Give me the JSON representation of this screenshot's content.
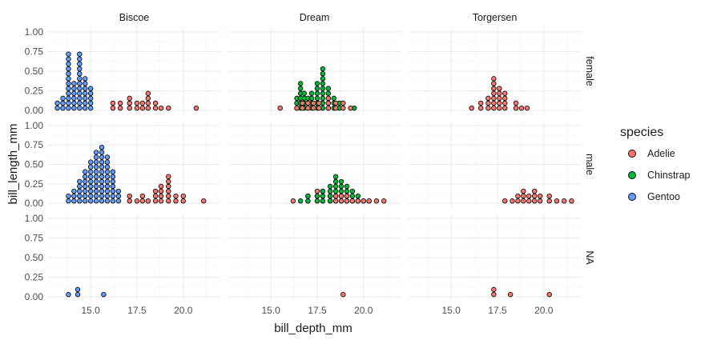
{
  "chart_data": {
    "type": "scatter",
    "subtype": "dotplot",
    "xlabel": "bill_depth_mm",
    "ylabel": "bill_length_mm",
    "facet_cols": [
      "Biscoe",
      "Dream",
      "Torgersen"
    ],
    "facet_rows": [
      "female",
      "male",
      "NA"
    ],
    "x_ticks": [
      "15.0",
      "17.5",
      "20.0"
    ],
    "y_ticks": [
      "0.00",
      "0.25",
      "0.50",
      "0.75",
      "1.00"
    ],
    "xlim": [
      12.7,
      22.0
    ],
    "ylim": [
      -0.05,
      1.05
    ],
    "grid": true,
    "legend": {
      "title": "species",
      "position": "right",
      "entries": [
        {
          "name": "Adelie",
          "color": "#F8766D"
        },
        {
          "name": "Chinstrap",
          "color": "#00BA38"
        },
        {
          "name": "Gentoo",
          "color": "#619CFF"
        }
      ]
    },
    "stacks": [
      {
        "island": "Biscoe",
        "sex": "female",
        "species": "Gentoo",
        "x": 13.2,
        "count": 2
      },
      {
        "island": "Biscoe",
        "sex": "female",
        "species": "Gentoo",
        "x": 13.5,
        "count": 3
      },
      {
        "island": "Biscoe",
        "sex": "female",
        "species": "Gentoo",
        "x": 13.8,
        "count": 12
      },
      {
        "island": "Biscoe",
        "sex": "female",
        "species": "Gentoo",
        "x": 14.1,
        "count": 6
      },
      {
        "island": "Biscoe",
        "sex": "female",
        "species": "Gentoo",
        "x": 14.4,
        "count": 12
      },
      {
        "island": "Biscoe",
        "sex": "female",
        "species": "Gentoo",
        "x": 14.7,
        "count": 7
      },
      {
        "island": "Biscoe",
        "sex": "female",
        "species": "Gentoo",
        "x": 15.0,
        "count": 5
      },
      {
        "island": "Biscoe",
        "sex": "female",
        "species": "Adelie",
        "x": 16.2,
        "count": 2
      },
      {
        "island": "Biscoe",
        "sex": "female",
        "species": "Adelie",
        "x": 16.6,
        "count": 2
      },
      {
        "island": "Biscoe",
        "sex": "female",
        "species": "Adelie",
        "x": 17.1,
        "count": 3
      },
      {
        "island": "Biscoe",
        "sex": "female",
        "species": "Adelie",
        "x": 17.5,
        "count": 2
      },
      {
        "island": "Biscoe",
        "sex": "female",
        "species": "Adelie",
        "x": 17.8,
        "count": 2
      },
      {
        "island": "Biscoe",
        "sex": "female",
        "species": "Adelie",
        "x": 18.1,
        "count": 4
      },
      {
        "island": "Biscoe",
        "sex": "female",
        "species": "Adelie",
        "x": 18.5,
        "count": 2
      },
      {
        "island": "Biscoe",
        "sex": "female",
        "species": "Adelie",
        "x": 18.8,
        "count": 1
      },
      {
        "island": "Biscoe",
        "sex": "female",
        "species": "Adelie",
        "x": 19.2,
        "count": 1
      },
      {
        "island": "Biscoe",
        "sex": "female",
        "species": "Adelie",
        "x": 20.7,
        "count": 1
      },
      {
        "island": "Biscoe",
        "sex": "male",
        "species": "Gentoo",
        "x": 13.8,
        "count": 2
      },
      {
        "island": "Biscoe",
        "sex": "male",
        "species": "Gentoo",
        "x": 14.1,
        "count": 3
      },
      {
        "island": "Biscoe",
        "sex": "male",
        "species": "Gentoo",
        "x": 14.4,
        "count": 5
      },
      {
        "island": "Biscoe",
        "sex": "male",
        "species": "Gentoo",
        "x": 14.7,
        "count": 7
      },
      {
        "island": "Biscoe",
        "sex": "male",
        "species": "Gentoo",
        "x": 15.0,
        "count": 9
      },
      {
        "island": "Biscoe",
        "sex": "male",
        "species": "Gentoo",
        "x": 15.3,
        "count": 11
      },
      {
        "island": "Biscoe",
        "sex": "male",
        "species": "Gentoo",
        "x": 15.6,
        "count": 12
      },
      {
        "island": "Biscoe",
        "sex": "male",
        "species": "Gentoo",
        "x": 15.9,
        "count": 10
      },
      {
        "island": "Biscoe",
        "sex": "male",
        "species": "Gentoo",
        "x": 16.2,
        "count": 7
      },
      {
        "island": "Biscoe",
        "sex": "male",
        "species": "Gentoo",
        "x": 16.5,
        "count": 3
      },
      {
        "island": "Biscoe",
        "sex": "male",
        "species": "Adelie",
        "x": 17.1,
        "count": 2
      },
      {
        "island": "Biscoe",
        "sex": "male",
        "species": "Adelie",
        "x": 17.5,
        "count": 1
      },
      {
        "island": "Biscoe",
        "sex": "male",
        "species": "Adelie",
        "x": 17.8,
        "count": 2
      },
      {
        "island": "Biscoe",
        "sex": "male",
        "species": "Adelie",
        "x": 18.1,
        "count": 1
      },
      {
        "island": "Biscoe",
        "sex": "male",
        "species": "Adelie",
        "x": 18.5,
        "count": 3
      },
      {
        "island": "Biscoe",
        "sex": "male",
        "species": "Adelie",
        "x": 18.8,
        "count": 4
      },
      {
        "island": "Biscoe",
        "sex": "male",
        "species": "Adelie",
        "x": 19.2,
        "count": 6
      },
      {
        "island": "Biscoe",
        "sex": "male",
        "species": "Adelie",
        "x": 19.6,
        "count": 2
      },
      {
        "island": "Biscoe",
        "sex": "male",
        "species": "Adelie",
        "x": 20.0,
        "count": 2
      },
      {
        "island": "Biscoe",
        "sex": "male",
        "species": "Adelie",
        "x": 21.1,
        "count": 1
      },
      {
        "island": "Biscoe",
        "sex": "NA",
        "species": "Gentoo",
        "x": 13.8,
        "count": 1
      },
      {
        "island": "Biscoe",
        "sex": "NA",
        "species": "Gentoo",
        "x": 14.3,
        "count": 2
      },
      {
        "island": "Biscoe",
        "sex": "NA",
        "species": "Gentoo",
        "x": 15.7,
        "count": 1
      },
      {
        "island": "Dream",
        "sex": "female",
        "species": "Adelie",
        "x": 15.5,
        "count": 1
      },
      {
        "island": "Dream",
        "sex": "female",
        "species": "Chinstrap",
        "x": 16.4,
        "count": 3
      },
      {
        "island": "Dream",
        "sex": "female",
        "species": "Chinstrap",
        "x": 16.6,
        "count": 6
      },
      {
        "island": "Dream",
        "sex": "female",
        "species": "Chinstrap",
        "x": 16.8,
        "count": 4
      },
      {
        "island": "Dream",
        "sex": "female",
        "species": "Chinstrap",
        "x": 17.0,
        "count": 3
      },
      {
        "island": "Dream",
        "sex": "female",
        "species": "Chinstrap",
        "x": 17.2,
        "count": 4
      },
      {
        "island": "Dream",
        "sex": "female",
        "species": "Chinstrap",
        "x": 17.5,
        "count": 6
      },
      {
        "island": "Dream",
        "sex": "female",
        "species": "Chinstrap",
        "x": 17.8,
        "count": 9
      },
      {
        "island": "Dream",
        "sex": "female",
        "species": "Chinstrap",
        "x": 18.1,
        "count": 5
      },
      {
        "island": "Dream",
        "sex": "female",
        "species": "Chinstrap",
        "x": 18.4,
        "count": 3
      },
      {
        "island": "Dream",
        "sex": "female",
        "species": "Chinstrap",
        "x": 18.7,
        "count": 2
      },
      {
        "island": "Dream",
        "sex": "female",
        "species": "Chinstrap",
        "x": 19.5,
        "count": 1
      },
      {
        "island": "Dream",
        "sex": "female",
        "species": "Adelie",
        "x": 16.4,
        "count": 1
      },
      {
        "island": "Dream",
        "sex": "female",
        "species": "Adelie",
        "x": 16.7,
        "count": 2
      },
      {
        "island": "Dream",
        "sex": "female",
        "species": "Adelie",
        "x": 17.0,
        "count": 2
      },
      {
        "island": "Dream",
        "sex": "female",
        "species": "Adelie",
        "x": 17.3,
        "count": 2
      },
      {
        "island": "Dream",
        "sex": "female",
        "species": "Adelie",
        "x": 17.6,
        "count": 2
      },
      {
        "island": "Dream",
        "sex": "female",
        "species": "Adelie",
        "x": 18.1,
        "count": 3
      },
      {
        "island": "Dream",
        "sex": "female",
        "species": "Adelie",
        "x": 18.5,
        "count": 2
      },
      {
        "island": "Dream",
        "sex": "female",
        "species": "Adelie",
        "x": 18.9,
        "count": 2
      },
      {
        "island": "Dream",
        "sex": "female",
        "species": "Adelie",
        "x": 19.3,
        "count": 1
      },
      {
        "island": "Dream",
        "sex": "male",
        "species": "Adelie",
        "x": 16.2,
        "count": 1
      },
      {
        "island": "Dream",
        "sex": "male",
        "species": "Chinstrap",
        "x": 16.6,
        "count": 1
      },
      {
        "island": "Dream",
        "sex": "male",
        "species": "Adelie",
        "x": 17.0,
        "count": 2
      },
      {
        "island": "Dream",
        "sex": "male",
        "species": "Chinstrap",
        "x": 17.0,
        "count": 2
      },
      {
        "island": "Dream",
        "sex": "male",
        "species": "Adelie",
        "x": 17.5,
        "count": 3
      },
      {
        "island": "Dream",
        "sex": "male",
        "species": "Chinstrap",
        "x": 17.5,
        "count": 2
      },
      {
        "island": "Dream",
        "sex": "male",
        "species": "Adelie",
        "x": 17.8,
        "count": 3
      },
      {
        "island": "Dream",
        "sex": "male",
        "species": "Chinstrap",
        "x": 17.8,
        "count": 3
      },
      {
        "island": "Dream",
        "sex": "male",
        "species": "Adelie",
        "x": 18.2,
        "count": 2
      },
      {
        "island": "Dream",
        "sex": "male",
        "species": "Chinstrap",
        "x": 18.2,
        "count": 4
      },
      {
        "island": "Dream",
        "sex": "male",
        "species": "Chinstrap",
        "x": 18.5,
        "count": 6
      },
      {
        "island": "Dream",
        "sex": "male",
        "species": "Adelie",
        "x": 18.5,
        "count": 2
      },
      {
        "island": "Dream",
        "sex": "male",
        "species": "Chinstrap",
        "x": 18.8,
        "count": 5
      },
      {
        "island": "Dream",
        "sex": "male",
        "species": "Adelie",
        "x": 18.8,
        "count": 2
      },
      {
        "island": "Dream",
        "sex": "male",
        "species": "Chinstrap",
        "x": 19.1,
        "count": 4
      },
      {
        "island": "Dream",
        "sex": "male",
        "species": "Adelie",
        "x": 19.1,
        "count": 2
      },
      {
        "island": "Dream",
        "sex": "male",
        "species": "Chinstrap",
        "x": 19.4,
        "count": 3
      },
      {
        "island": "Dream",
        "sex": "male",
        "species": "Adelie",
        "x": 19.4,
        "count": 1
      },
      {
        "island": "Dream",
        "sex": "male",
        "species": "Chinstrap",
        "x": 19.7,
        "count": 2
      },
      {
        "island": "Dream",
        "sex": "male",
        "species": "Adelie",
        "x": 19.7,
        "count": 1
      },
      {
        "island": "Dream",
        "sex": "male",
        "species": "Chinstrap",
        "x": 20.0,
        "count": 1
      },
      {
        "island": "Dream",
        "sex": "male",
        "species": "Adelie",
        "x": 20.0,
        "count": 1
      },
      {
        "island": "Dream",
        "sex": "male",
        "species": "Chinstrap",
        "x": 20.3,
        "count": 1
      },
      {
        "island": "Dream",
        "sex": "male",
        "species": "Adelie",
        "x": 20.3,
        "count": 1
      },
      {
        "island": "Dream",
        "sex": "male",
        "species": "Adelie",
        "x": 20.7,
        "count": 1
      },
      {
        "island": "Dream",
        "sex": "male",
        "species": "Adelie",
        "x": 21.1,
        "count": 1
      },
      {
        "island": "Dream",
        "sex": "NA",
        "species": "Adelie",
        "x": 18.9,
        "count": 1
      },
      {
        "island": "Torgersen",
        "sex": "female",
        "species": "Adelie",
        "x": 16.1,
        "count": 1
      },
      {
        "island": "Torgersen",
        "sex": "female",
        "species": "Adelie",
        "x": 16.6,
        "count": 2
      },
      {
        "island": "Torgersen",
        "sex": "female",
        "species": "Adelie",
        "x": 17.0,
        "count": 3
      },
      {
        "island": "Torgersen",
        "sex": "female",
        "species": "Adelie",
        "x": 17.3,
        "count": 7
      },
      {
        "island": "Torgersen",
        "sex": "female",
        "species": "Adelie",
        "x": 17.6,
        "count": 5
      },
      {
        "island": "Torgersen",
        "sex": "female",
        "species": "Adelie",
        "x": 17.9,
        "count": 4
      },
      {
        "island": "Torgersen",
        "sex": "female",
        "species": "Adelie",
        "x": 18.5,
        "count": 2
      },
      {
        "island": "Torgersen",
        "sex": "female",
        "species": "Adelie",
        "x": 18.8,
        "count": 1
      },
      {
        "island": "Torgersen",
        "sex": "female",
        "species": "Adelie",
        "x": 19.1,
        "count": 1
      },
      {
        "island": "Torgersen",
        "sex": "male",
        "species": "Adelie",
        "x": 17.9,
        "count": 1
      },
      {
        "island": "Torgersen",
        "sex": "male",
        "species": "Adelie",
        "x": 18.3,
        "count": 1
      },
      {
        "island": "Torgersen",
        "sex": "male",
        "species": "Adelie",
        "x": 18.6,
        "count": 2
      },
      {
        "island": "Torgersen",
        "sex": "male",
        "species": "Adelie",
        "x": 18.9,
        "count": 3
      },
      {
        "island": "Torgersen",
        "sex": "male",
        "species": "Adelie",
        "x": 19.2,
        "count": 2
      },
      {
        "island": "Torgersen",
        "sex": "male",
        "species": "Adelie",
        "x": 19.5,
        "count": 3
      },
      {
        "island": "Torgersen",
        "sex": "male",
        "species": "Adelie",
        "x": 19.8,
        "count": 2
      },
      {
        "island": "Torgersen",
        "sex": "male",
        "species": "Adelie",
        "x": 20.3,
        "count": 2
      },
      {
        "island": "Torgersen",
        "sex": "male",
        "species": "Adelie",
        "x": 20.7,
        "count": 1
      },
      {
        "island": "Torgersen",
        "sex": "male",
        "species": "Adelie",
        "x": 21.1,
        "count": 1
      },
      {
        "island": "Torgersen",
        "sex": "male",
        "species": "Adelie",
        "x": 21.5,
        "count": 1
      },
      {
        "island": "Torgersen",
        "sex": "NA",
        "species": "Adelie",
        "x": 17.3,
        "count": 2
      },
      {
        "island": "Torgersen",
        "sex": "NA",
        "species": "Adelie",
        "x": 18.2,
        "count": 1
      },
      {
        "island": "Torgersen",
        "sex": "NA",
        "species": "Adelie",
        "x": 20.3,
        "count": 1
      }
    ]
  }
}
